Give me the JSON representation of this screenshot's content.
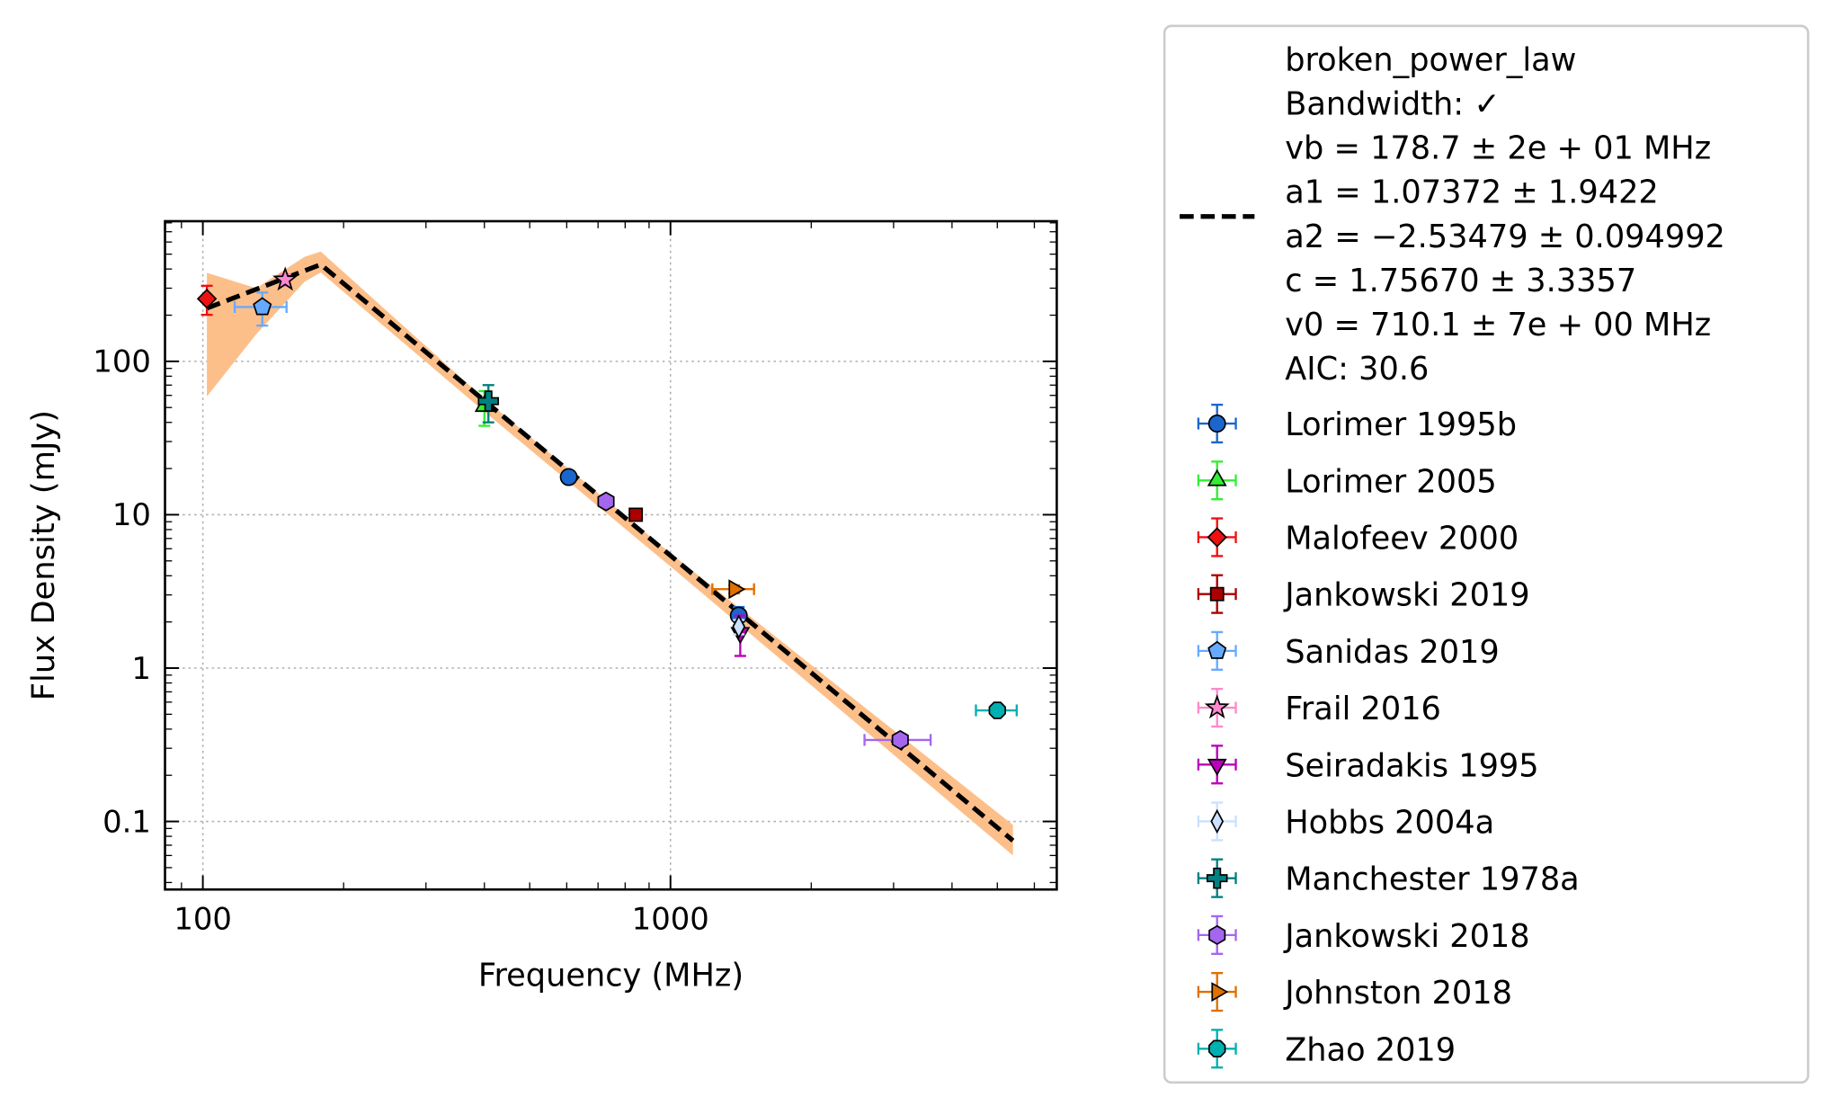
{
  "chart_data": {
    "type": "scatter",
    "xlabel": "Frequency (MHz)",
    "ylabel": "Flux Density (mJy)",
    "xscale": "log",
    "yscale": "log",
    "grid": true,
    "xlim": [
      83,
      6700
    ],
    "ylim": [
      0.036,
      820
    ],
    "xticks": [
      100,
      1000
    ],
    "yticks": [
      0.1,
      1,
      10,
      100
    ],
    "xminorticks": [
      90,
      200,
      300,
      400,
      500,
      600,
      700,
      800,
      900,
      2000,
      3000,
      4000,
      5000,
      6000
    ],
    "yminorticks": [
      0.04,
      0.05,
      0.06,
      0.07,
      0.08,
      0.09,
      0.2,
      0.3,
      0.4,
      0.5,
      0.6,
      0.7,
      0.8,
      0.9,
      2,
      3,
      4,
      5,
      6,
      7,
      8,
      9,
      20,
      30,
      40,
      50,
      60,
      70,
      80,
      90,
      200,
      300,
      400,
      500,
      600,
      700,
      800
    ],
    "fit": {
      "name": "broken_power_law",
      "legend_lines": [
        "broken_power_law",
        "Bandwidth: ✓",
        "vb = 178.7 ± 2e + 01 MHz",
        "a1 = 1.07372 ± 1.9422",
        "a2 = −2.53479 ± 0.094992",
        "c = 1.75670 ± 3.3357",
        "v0 = 710.1 ± 7e + 00 MHz",
        "AIC: 30.6"
      ],
      "color": "#000000",
      "x": [
        102,
        178.7,
        5400
      ],
      "values": [
        222,
        428,
        0.075
      ]
    },
    "band": {
      "color": "#fdbf8a",
      "x": [
        102,
        130,
        165,
        178.7,
        400,
        1000,
        5400
      ],
      "lower": [
        59,
        150,
        330,
        380,
        47,
        4.6,
        0.06
      ],
      "upper": [
        378,
        300,
        480,
        520,
        57,
        5.6,
        0.095
      ]
    },
    "legend": "outside-right",
    "series": [
      {
        "name": "Lorimer 1995b",
        "color": "#1a66cc",
        "marker": "circle",
        "x": [
          606,
          1400
        ],
        "values": [
          17.6,
          2.2
        ],
        "yerr": [
          1.0,
          0.3
        ],
        "xerr": [
          null,
          null
        ]
      },
      {
        "name": "Lorimer 2005",
        "color": "#33ee33",
        "marker": "triangle",
        "x": [
          400
        ],
        "values": [
          51
        ],
        "yerr": [
          13
        ],
        "xerr": [
          null
        ]
      },
      {
        "name": "Malofeev 2000",
        "color": "#ee1111",
        "marker": "diamond",
        "x": [
          102
        ],
        "values": [
          256
        ],
        "yerr": [
          55
        ],
        "xerr": [
          null
        ]
      },
      {
        "name": "Jankowski 2019",
        "color": "#aa0000",
        "marker": "square",
        "x": [
          843
        ],
        "values": [
          10
        ],
        "yerr": [
          0.6
        ],
        "xerr": [
          null
        ]
      },
      {
        "name": "Sanidas 2019",
        "color": "#66aaff",
        "marker": "pentagon",
        "x": [
          134
        ],
        "values": [
          226
        ],
        "yerr": [
          55
        ],
        "xerr": [
          17
        ]
      },
      {
        "name": "Frail 2016",
        "color": "#ff88cc",
        "marker": "star",
        "x": [
          150
        ],
        "values": [
          340
        ],
        "yerr": [
          30
        ],
        "xerr": [
          null
        ]
      },
      {
        "name": "Seiradakis 1995",
        "color": "#bb00bb",
        "marker": "triangle_down",
        "x": [
          1410
        ],
        "values": [
          1.7
        ],
        "yerr": [
          0.5
        ],
        "xerr": [
          null
        ]
      },
      {
        "name": "Hobbs 2004a",
        "color": "#cce0ff",
        "marker": "thin_diamond",
        "x": [
          1400
        ],
        "values": [
          1.86
        ],
        "yerr": [
          0.2
        ],
        "xerr": [
          null
        ]
      },
      {
        "name": "Manchester 1978a",
        "color": "#008080",
        "marker": "plus",
        "x": [
          408
        ],
        "values": [
          55
        ],
        "yerr": [
          15
        ],
        "xerr": [
          null
        ]
      },
      {
        "name": "Jankowski 2018",
        "color": "#a466ee",
        "marker": "hexagon",
        "x": [
          728,
          3100
        ],
        "values": [
          12.2,
          0.34
        ],
        "yerr": [
          0.8,
          0.03
        ],
        "xerr": [
          null,
          500
        ]
      },
      {
        "name": "Johnston 2018",
        "color": "#e07000",
        "marker": "triangle_right",
        "x": [
          1369
        ],
        "values": [
          3.27
        ],
        "yerr": [
          0.2
        ],
        "xerr": [
          140
        ]
      },
      {
        "name": "Zhao 2019",
        "color": "#00b0b0",
        "marker": "octagon",
        "x": [
          5000
        ],
        "values": [
          0.53
        ],
        "yerr": [
          0.03
        ],
        "xerr": [
          500
        ]
      }
    ]
  }
}
